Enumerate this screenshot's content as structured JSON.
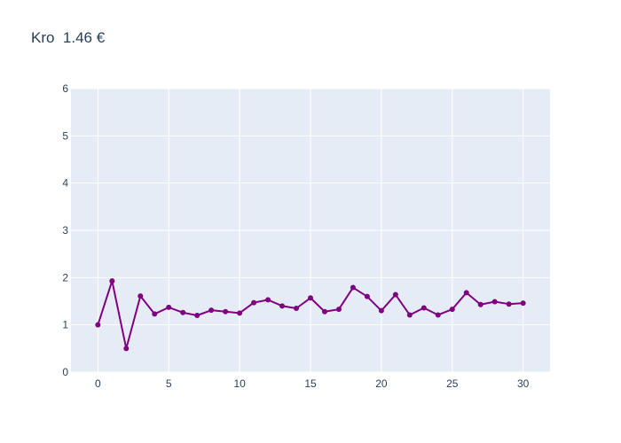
{
  "chart_data": {
    "type": "line",
    "title": "Kro  1.46 €",
    "xlabel": "",
    "ylabel": "",
    "x": [
      0,
      1,
      2,
      3,
      4,
      5,
      6,
      7,
      8,
      9,
      10,
      11,
      12,
      13,
      14,
      15,
      16,
      17,
      18,
      19,
      20,
      21,
      22,
      23,
      24,
      25,
      26,
      27,
      28,
      29,
      30
    ],
    "series": [
      {
        "values": [
          1.0,
          1.93,
          0.5,
          1.61,
          1.23,
          1.37,
          1.26,
          1.2,
          1.31,
          1.28,
          1.25,
          1.47,
          1.53,
          1.4,
          1.35,
          1.57,
          1.28,
          1.33,
          1.79,
          1.6,
          1.3,
          1.64,
          1.21,
          1.36,
          1.21,
          1.33,
          1.68,
          1.43,
          1.49,
          1.44,
          1.46
        ],
        "color": "#800080",
        "mode": "lines+markers"
      }
    ],
    "xlim": [
      -1.9,
      31.9
    ],
    "ylim": [
      0,
      6
    ],
    "xticks": [
      0,
      5,
      10,
      15,
      20,
      25,
      30
    ],
    "yticks": [
      0,
      1,
      2,
      3,
      4,
      5,
      6
    ],
    "grid": true,
    "legend": "none",
    "plot_background": "#e5ecf6",
    "grid_color": "#ffffff",
    "tick_color": "#2a3f5f"
  }
}
